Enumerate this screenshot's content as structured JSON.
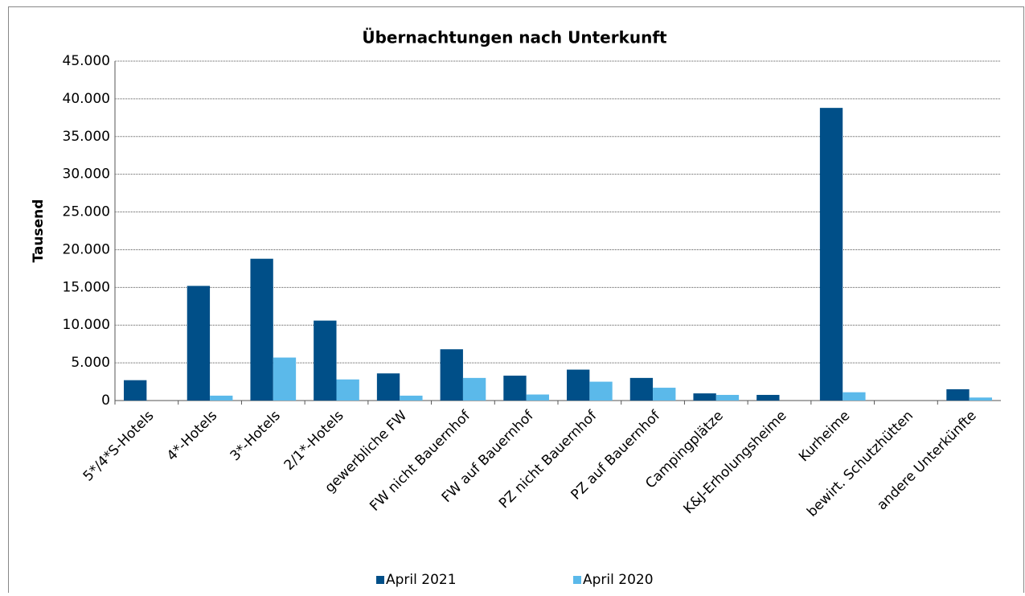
{
  "chart_data": {
    "type": "bar",
    "title": "Übernachtungen nach Unterkunft",
    "y_label": "Tausend",
    "categories": [
      "5*/4*S-Hotels",
      "4*-Hotels",
      "3*-Hotels",
      "2/1*-Hotels",
      "gewerbliche FW",
      "FW nicht Bauernhof",
      "FW auf Bauernhof",
      "PZ nicht Bauernhof",
      "PZ auf Bauernhof",
      "Campingplätze",
      "K&J-Erholungsheime",
      "Kurheime",
      "bewirt. Schutzhütten",
      "andere Unterkünfte"
    ],
    "series": [
      {
        "name": "April 2021",
        "color": "#004f88",
        "values": [
          2700,
          15200,
          18800,
          10600,
          3600,
          6800,
          3300,
          4100,
          3000,
          950,
          750,
          38800,
          0,
          1500
        ]
      },
      {
        "name": "April 2020",
        "color": "#5bb9ea",
        "values": [
          0,
          650,
          5700,
          2800,
          650,
          3000,
          800,
          2500,
          1700,
          750,
          0,
          1100,
          0,
          400
        ]
      }
    ],
    "ylim": [
      0,
      45000
    ],
    "yticks": [
      0,
      {
        "value": 5000,
        "label": "5.000"
      },
      {
        "value": 10000,
        "label": "10.000"
      },
      {
        "value": 15000,
        "label": "15.000"
      },
      {
        "value": 20000,
        "label": "20.000"
      },
      {
        "value": 25000,
        "label": "25.000"
      },
      {
        "value": 30000,
        "label": "30.000"
      },
      {
        "value": 35000,
        "label": "35.000"
      },
      {
        "value": 40000,
        "label": "40.000"
      },
      {
        "value": 45000,
        "label": "45.000"
      }
    ],
    "grid": true,
    "legend": "bottom"
  }
}
